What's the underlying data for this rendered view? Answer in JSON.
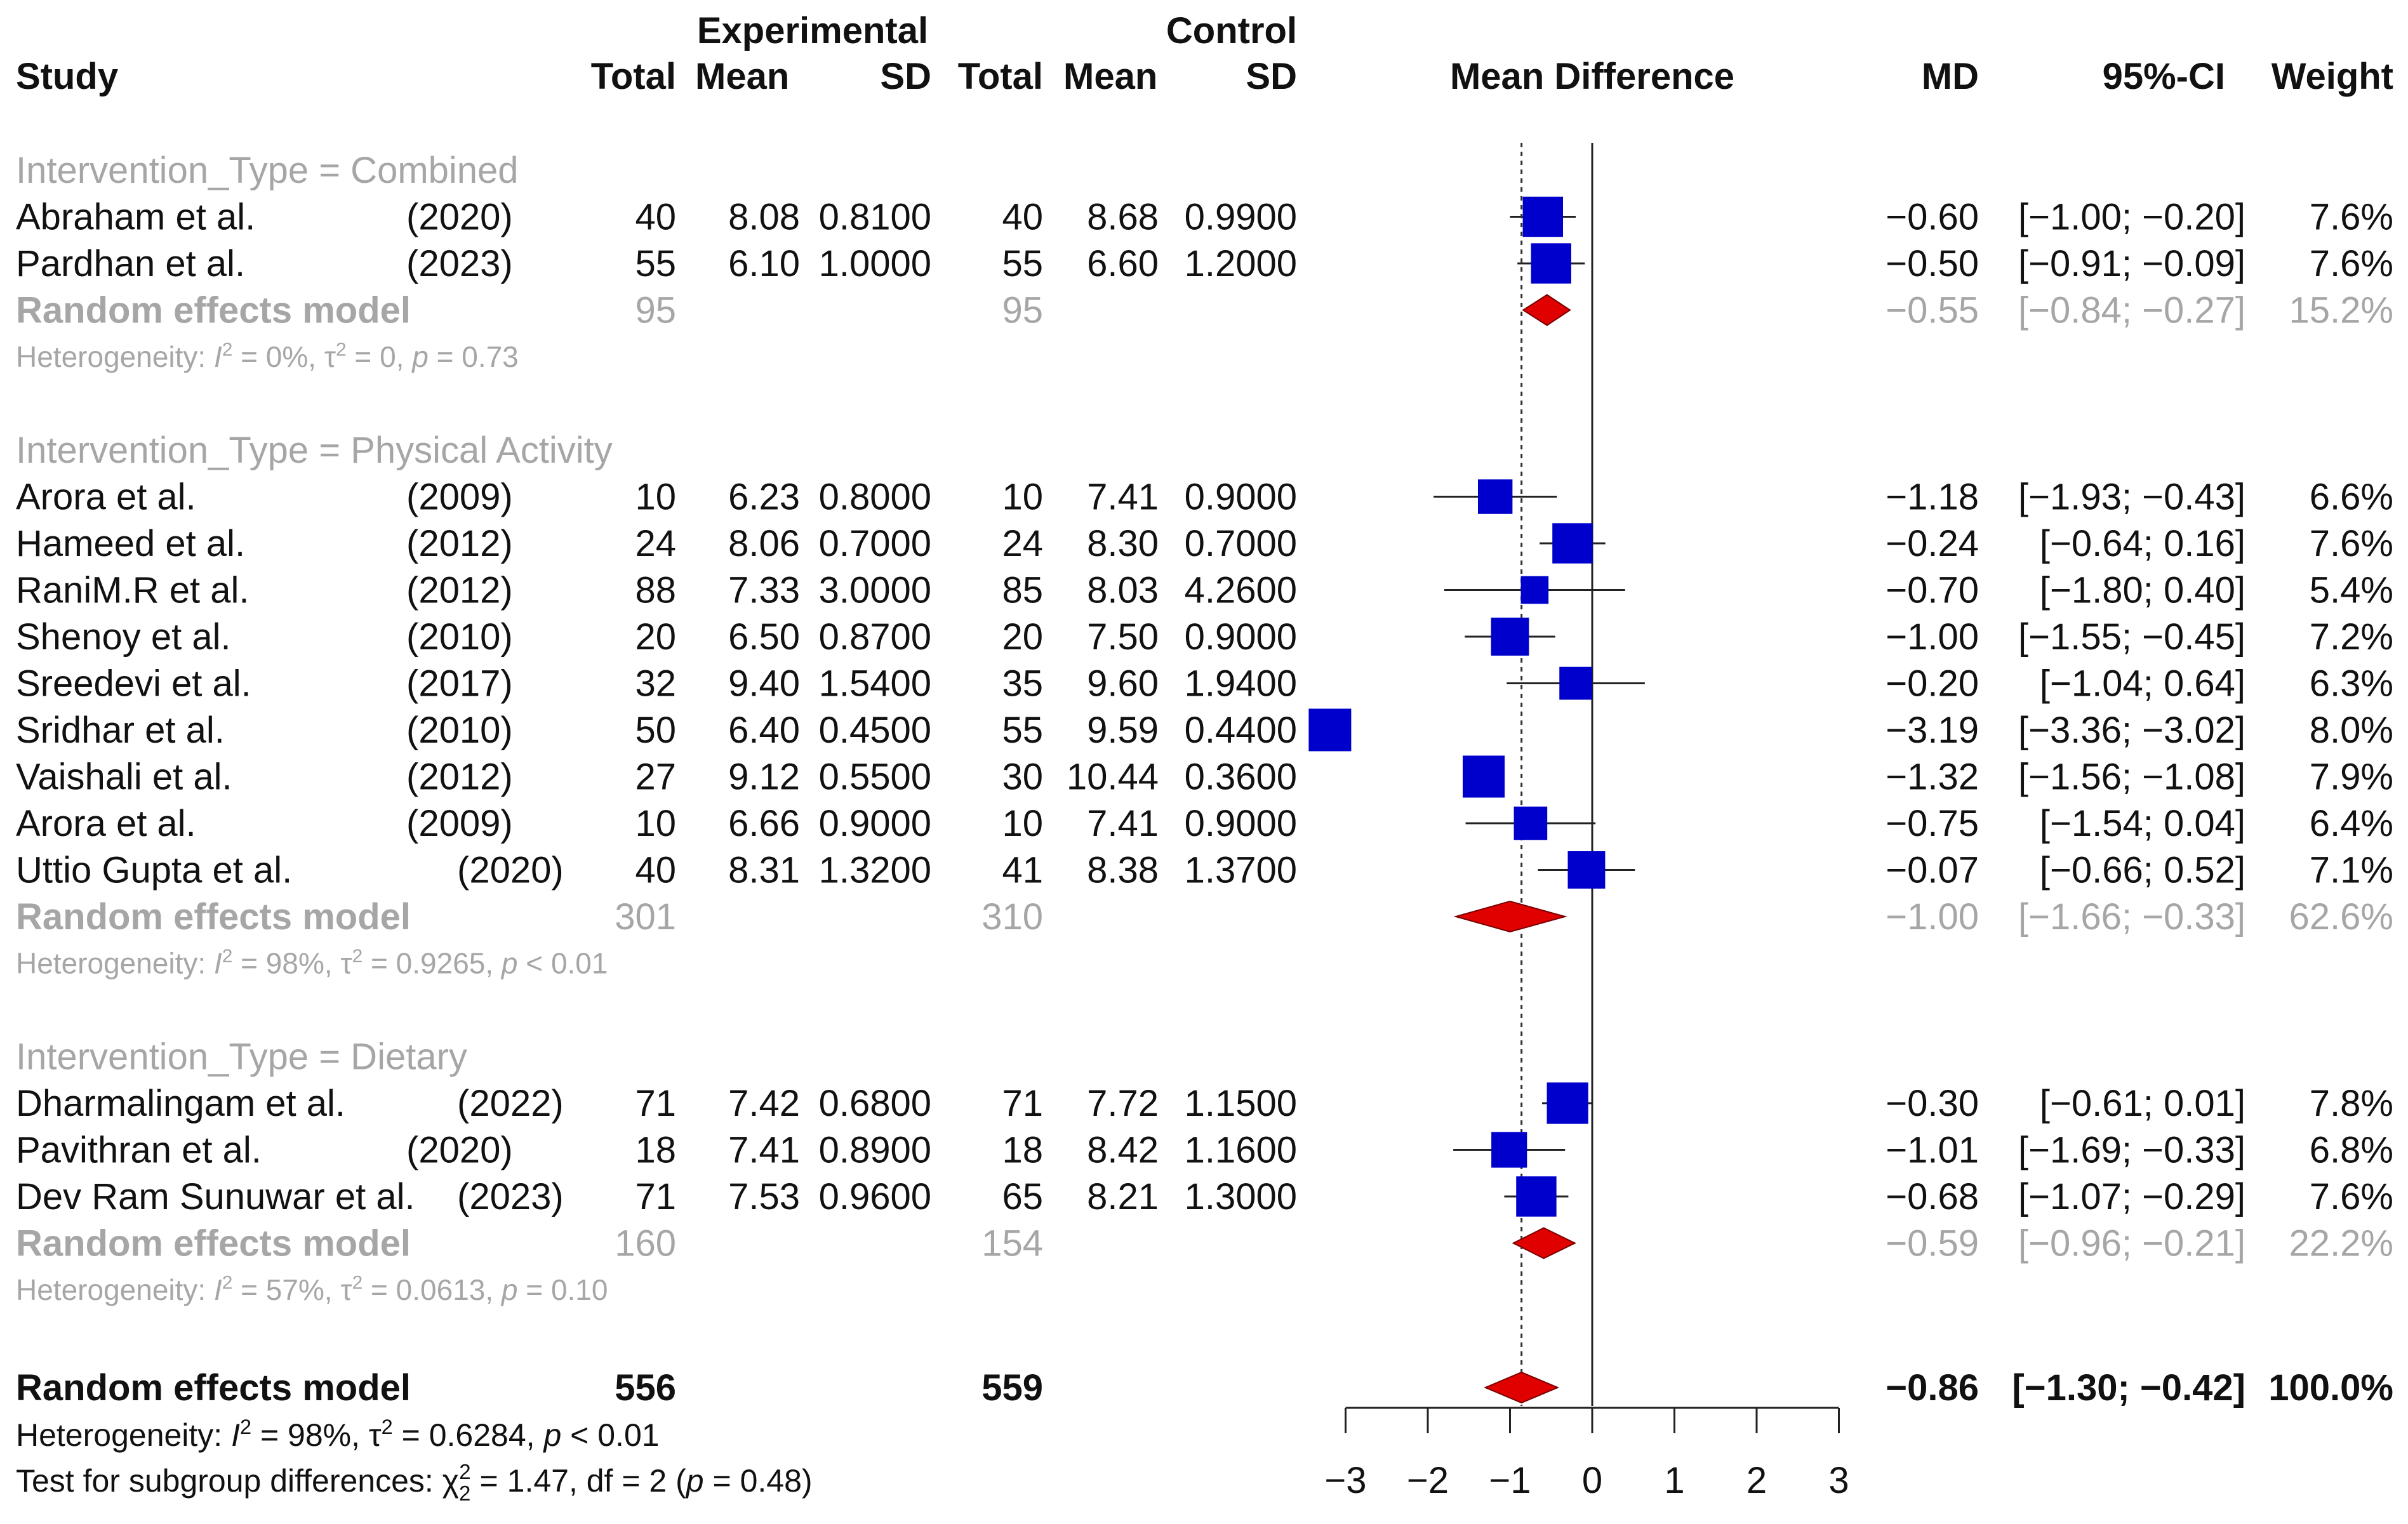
{
  "header": {
    "group_experimental": "Experimental",
    "group_control": "Control",
    "study": "Study",
    "e_total": "Total",
    "e_mean": "Mean",
    "e_sd": "SD",
    "c_total": "Total",
    "c_mean": "Mean",
    "c_sd": "SD",
    "mean_difference": "Mean Difference",
    "md": "MD",
    "ci": "95%-CI",
    "weight": "Weight"
  },
  "colors": {
    "square": "#0000cc",
    "diamond": "#e00000",
    "grey_text": "#a6a6a6",
    "text": "#111111"
  },
  "chart_data": {
    "type": "forest",
    "xlim": [
      -3,
      3
    ],
    "x_ticks": [
      -3,
      -2,
      -1,
      0,
      1,
      2,
      3
    ],
    "x_tick_labels": [
      "−3",
      "−2",
      "−1",
      "0",
      "1",
      "2",
      "3"
    ],
    "overall_md": -0.86,
    "groups": [
      {
        "label": "Intervention_Type = Combined",
        "studies": [
          {
            "study": "Abraham et al.",
            "year": "(2020)",
            "e_total": "40",
            "e_mean": "8.08",
            "e_sd": "0.8100",
            "c_total": "40",
            "c_mean": "8.68",
            "c_sd": "0.9900",
            "md": -0.6,
            "lower": -1.0,
            "upper": -0.2,
            "weight": 7.6,
            "md_text": "−0.60",
            "ci_text": "[−1.00; −0.20]",
            "weight_text": "7.6%"
          },
          {
            "study": "Pardhan et al.",
            "year": "(2023)",
            "e_total": "55",
            "e_mean": "6.10",
            "e_sd": "1.0000",
            "c_total": "55",
            "c_mean": "6.60",
            "c_sd": "1.2000",
            "md": -0.5,
            "lower": -0.91,
            "upper": -0.09,
            "weight": 7.6,
            "md_text": "−0.50",
            "ci_text": "[−0.91; −0.09]",
            "weight_text": "7.6%"
          }
        ],
        "model": {
          "label": "Random effects model",
          "e_total": "95",
          "c_total": "95",
          "md": -0.55,
          "lower": -0.84,
          "upper": -0.27,
          "md_text": "−0.55",
          "ci_text": "[−0.84; −0.27]",
          "weight_text": "15.2%"
        },
        "heterogeneity": {
          "prefix": "Heterogeneity: ",
          "i2": "= 0%, ",
          "tau2": " = 0, ",
          "p": " = 0.73"
        }
      },
      {
        "label": "Intervention_Type = Physical Activity",
        "studies": [
          {
            "study": "Arora et al.",
            "year": "(2009)",
            "e_total": "10",
            "e_mean": "6.23",
            "e_sd": "0.8000",
            "c_total": "10",
            "c_mean": "7.41",
            "c_sd": "0.9000",
            "md": -1.18,
            "lower": -1.93,
            "upper": -0.43,
            "weight": 6.6,
            "md_text": "−1.18",
            "ci_text": "[−1.93; −0.43]",
            "weight_text": "6.6%"
          },
          {
            "study": "Hameed et al.",
            "year": "(2012)",
            "e_total": "24",
            "e_mean": "8.06",
            "e_sd": "0.7000",
            "c_total": "24",
            "c_mean": "8.30",
            "c_sd": "0.7000",
            "md": -0.24,
            "lower": -0.64,
            "upper": 0.16,
            "weight": 7.6,
            "md_text": "−0.24",
            "ci_text": "[−0.64;  0.16]",
            "weight_text": "7.6%"
          },
          {
            "study": "RaniM.R et al.",
            "year": "(2012)",
            "e_total": "88",
            "e_mean": "7.33",
            "e_sd": "3.0000",
            "c_total": "85",
            "c_mean": "8.03",
            "c_sd": "4.2600",
            "md": -0.7,
            "lower": -1.8,
            "upper": 0.4,
            "weight": 5.4,
            "md_text": "−0.70",
            "ci_text": "[−1.80;  0.40]",
            "weight_text": "5.4%"
          },
          {
            "study": "Shenoy et al.",
            "year": "(2010)",
            "e_total": "20",
            "e_mean": "6.50",
            "e_sd": "0.8700",
            "c_total": "20",
            "c_mean": "7.50",
            "c_sd": "0.9000",
            "md": -1.0,
            "lower": -1.55,
            "upper": -0.45,
            "weight": 7.2,
            "md_text": "−1.00",
            "ci_text": "[−1.55; −0.45]",
            "weight_text": "7.2%"
          },
          {
            "study": "Sreedevi et al.",
            "year": "(2017)",
            "e_total": "32",
            "e_mean": "9.40",
            "e_sd": "1.5400",
            "c_total": "35",
            "c_mean": "9.60",
            "c_sd": "1.9400",
            "md": -0.2,
            "lower": -1.04,
            "upper": 0.64,
            "weight": 6.3,
            "md_text": "−0.20",
            "ci_text": "[−1.04;  0.64]",
            "weight_text": "6.3%"
          },
          {
            "study": "Sridhar et al.",
            "year": "(2010)",
            "e_total": "50",
            "e_mean": "6.40",
            "e_sd": "0.4500",
            "c_total": "55",
            "c_mean": "9.59",
            "c_sd": "0.4400",
            "md": -3.19,
            "lower": -3.36,
            "upper": -3.02,
            "weight": 8.0,
            "md_text": "−3.19",
            "ci_text": "[−3.36; −3.02]",
            "weight_text": "8.0%"
          },
          {
            "study": "Vaishali et al.",
            "year": "(2012)",
            "e_total": "27",
            "e_mean": "9.12",
            "e_sd": "0.5500",
            "c_total": "30",
            "c_mean": "10.44",
            "c_sd": "0.3600",
            "md": -1.32,
            "lower": -1.56,
            "upper": -1.08,
            "weight": 7.9,
            "md_text": "−1.32",
            "ci_text": "[−1.56; −1.08]",
            "weight_text": "7.9%"
          },
          {
            "study": "Arora et al.",
            "year": "(2009)",
            "e_total": "10",
            "e_mean": "6.66",
            "e_sd": "0.9000",
            "c_total": "10",
            "c_mean": "7.41",
            "c_sd": "0.9000",
            "md": -0.75,
            "lower": -1.54,
            "upper": 0.04,
            "weight": 6.4,
            "md_text": "−0.75",
            "ci_text": "[−1.54;  0.04]",
            "weight_text": "6.4%"
          },
          {
            "study": "Uttio Gupta et al.",
            "year": "(2020)",
            "e_total": "40",
            "e_mean": "8.31",
            "e_sd": "1.3200",
            "c_total": "41",
            "c_mean": "8.38",
            "c_sd": "1.3700",
            "md": -0.07,
            "lower": -0.66,
            "upper": 0.52,
            "weight": 7.1,
            "md_text": "−0.07",
            "ci_text": "[−0.66;  0.52]",
            "weight_text": "7.1%"
          }
        ],
        "model": {
          "label": "Random effects model",
          "e_total": "301",
          "c_total": "310",
          "md": -1.0,
          "lower": -1.66,
          "upper": -0.33,
          "md_text": "−1.00",
          "ci_text": "[−1.66; −0.33]",
          "weight_text": "62.6%"
        },
        "heterogeneity": {
          "prefix": "Heterogeneity: ",
          "i2": "= 98%, ",
          "tau2": " = 0.9265, ",
          "p": " < 0.01"
        }
      },
      {
        "label": "Intervention_Type = Dietary",
        "studies": [
          {
            "study": "Dharmalingam et al.",
            "year": "(2022)",
            "e_total": "71",
            "e_mean": "7.42",
            "e_sd": "0.6800",
            "c_total": "71",
            "c_mean": "7.72",
            "c_sd": "1.1500",
            "md": -0.3,
            "lower": -0.61,
            "upper": 0.01,
            "weight": 7.8,
            "md_text": "−0.30",
            "ci_text": "[−0.61;  0.01]",
            "weight_text": "7.8%"
          },
          {
            "study": "Pavithran et al.",
            "year": "(2020)",
            "e_total": "18",
            "e_mean": "7.41",
            "e_sd": "0.8900",
            "c_total": "18",
            "c_mean": "8.42",
            "c_sd": "1.1600",
            "md": -1.01,
            "lower": -1.69,
            "upper": -0.33,
            "weight": 6.8,
            "md_text": "−1.01",
            "ci_text": "[−1.69; −0.33]",
            "weight_text": "6.8%"
          },
          {
            "study": "Dev Ram Sunuwar et al.",
            "year": "(2023)",
            "e_total": "71",
            "e_mean": "7.53",
            "e_sd": "0.9600",
            "c_total": "65",
            "c_mean": "8.21",
            "c_sd": "1.3000",
            "md": -0.68,
            "lower": -1.07,
            "upper": -0.29,
            "weight": 7.6,
            "md_text": "−0.68",
            "ci_text": "[−1.07; −0.29]",
            "weight_text": "7.6%"
          }
        ],
        "model": {
          "label": "Random effects model",
          "e_total": "160",
          "c_total": "154",
          "md": -0.59,
          "lower": -0.96,
          "upper": -0.21,
          "md_text": "−0.59",
          "ci_text": "[−0.96; −0.21]",
          "weight_text": "22.2%"
        },
        "heterogeneity": {
          "prefix": "Heterogeneity: ",
          "i2": "= 57%, ",
          "tau2": " = 0.0613, ",
          "p": " = 0.10"
        }
      }
    ],
    "overall": {
      "label": "Random effects model",
      "e_total": "556",
      "c_total": "559",
      "md": -0.86,
      "lower": -1.3,
      "upper": -0.42,
      "md_text": "−0.86",
      "ci_text": "[−1.30; −0.42]",
      "weight_text": "100.0%",
      "heterogeneity": {
        "prefix": "Heterogeneity: ",
        "i2": "= 98%, ",
        "tau2": " = 0.6284, ",
        "p": " < 0.01"
      },
      "subgroup_test": {
        "prefix": "Test for subgroup differences: ",
        "chi_value": " = 1.47, df = 2 (",
        "p": " = 0.48)"
      }
    }
  }
}
